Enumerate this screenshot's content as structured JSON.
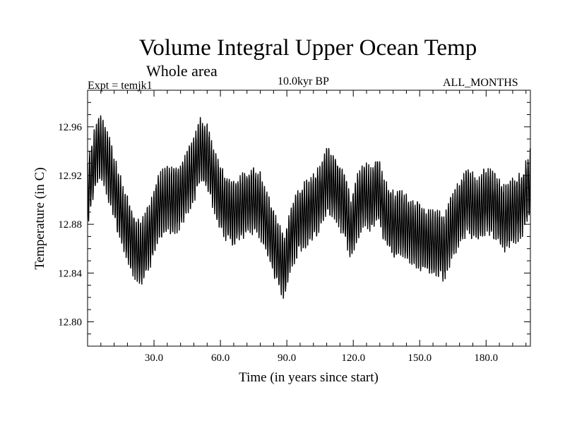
{
  "header": {
    "title": "Volume Integral Upper Ocean Temp",
    "subtitle": "Whole area",
    "experiment": "Expt = temjk1",
    "period": "10.0kyr BP",
    "months": "ALL_MONTHS"
  },
  "chart_data": {
    "type": "line",
    "title": "Volume Integral Upper Ocean Temp",
    "subtitle": "Whole area",
    "xlabel": "Time (in years since start)",
    "ylabel": "Temperature (in C)",
    "xlim": [
      0,
      200
    ],
    "ylim": [
      12.78,
      12.99
    ],
    "xticks": [
      30,
      60,
      90,
      120,
      150,
      180
    ],
    "xtick_labels": [
      "30.0",
      "60.0",
      "90.0",
      "120.0",
      "150.0",
      "180.0"
    ],
    "yticks": [
      12.8,
      12.84,
      12.88,
      12.92,
      12.96
    ],
    "ytick_labels": [
      "12.80",
      "12.84",
      "12.88",
      "12.92",
      "12.96"
    ],
    "grid": false,
    "series": [
      {
        "name": "Temperature",
        "sampling": "monthly (12 per year)",
        "seasonal_amplitude": 0.025,
        "annual_mean_x": [
          0,
          3,
          5,
          8,
          12,
          16,
          20,
          24,
          28,
          32,
          36,
          40,
          44,
          48,
          51,
          54,
          58,
          62,
          66,
          70,
          74,
          78,
          82,
          86,
          89,
          92,
          96,
          100,
          104,
          108,
          112,
          116,
          119,
          122,
          125,
          128,
          131,
          134,
          138,
          142,
          146,
          150,
          154,
          158,
          161,
          164,
          168,
          172,
          176,
          180,
          184,
          188,
          192,
          196,
          200
        ],
        "annual_mean_y": [
          12.905,
          12.93,
          12.945,
          12.935,
          12.91,
          12.885,
          12.865,
          12.855,
          12.87,
          12.895,
          12.9,
          12.9,
          12.91,
          12.925,
          12.94,
          12.935,
          12.91,
          12.895,
          12.89,
          12.895,
          12.9,
          12.895,
          12.875,
          12.855,
          12.845,
          12.87,
          12.885,
          12.89,
          12.9,
          12.915,
          12.91,
          12.895,
          12.875,
          12.895,
          12.905,
          12.9,
          12.91,
          12.89,
          12.88,
          12.88,
          12.875,
          12.87,
          12.865,
          12.865,
          12.86,
          12.875,
          12.89,
          12.9,
          12.89,
          12.9,
          12.895,
          12.885,
          12.89,
          12.895,
          12.915
        ]
      }
    ]
  }
}
